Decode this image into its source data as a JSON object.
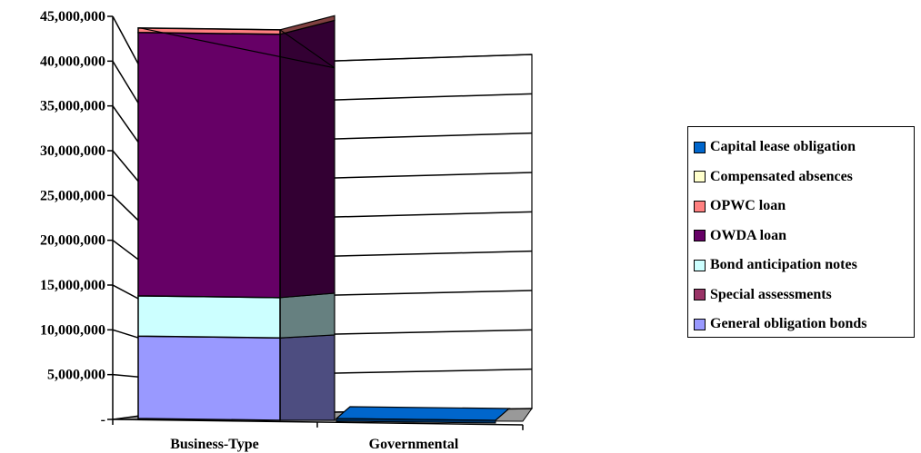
{
  "chart_data": {
    "type": "bar",
    "stacked": true,
    "three_d": true,
    "categories": [
      "Business-Type",
      "Governmental"
    ],
    "series": [
      {
        "name": "General obligation bonds",
        "color": "#9999ff",
        "side_color": "#4d4d80",
        "values": [
          9200000,
          0
        ]
      },
      {
        "name": "Special assessments",
        "color": "#993366",
        "side_color": "#4d1a33",
        "values": [
          0,
          0
        ]
      },
      {
        "name": "Bond anticipation notes",
        "color": "#ccffff",
        "side_color": "#668080",
        "values": [
          4500000,
          0
        ]
      },
      {
        "name": "OWDA loan",
        "color": "#660066",
        "side_color": "#330033",
        "values": [
          29400000,
          0
        ]
      },
      {
        "name": "OPWC loan",
        "color": "#ff8080",
        "side_color": "#804040",
        "values": [
          500000,
          0
        ]
      },
      {
        "name": "Compensated absences",
        "color": "#ffffcc",
        "side_color": "#808066",
        "values": [
          0,
          0
        ]
      },
      {
        "name": "Capital lease obligation",
        "color": "#0066cc",
        "side_color": "#003366",
        "values": [
          0,
          200000
        ]
      }
    ],
    "ylim": [
      0,
      45000000
    ],
    "yticks": [
      {
        "value": 0,
        "label": "-"
      },
      {
        "value": 5000000,
        "label": "5,000,000"
      },
      {
        "value": 10000000,
        "label": "10,000,000"
      },
      {
        "value": 15000000,
        "label": "15,000,000"
      },
      {
        "value": 20000000,
        "label": "20,000,000"
      },
      {
        "value": 25000000,
        "label": "25,000,000"
      },
      {
        "value": 30000000,
        "label": "30,000,000"
      },
      {
        "value": 35000000,
        "label": "35,000,000"
      },
      {
        "value": 40000000,
        "label": "40,000,000"
      },
      {
        "value": 45000000,
        "label": "45,000,000"
      }
    ],
    "grid": true,
    "legend_position": "right",
    "legend_order": [
      "Capital lease obligation",
      "Compensated absences",
      "OPWC loan",
      "OWDA loan",
      "Bond anticipation notes",
      "Special assessments",
      "General obligation bonds"
    ]
  }
}
